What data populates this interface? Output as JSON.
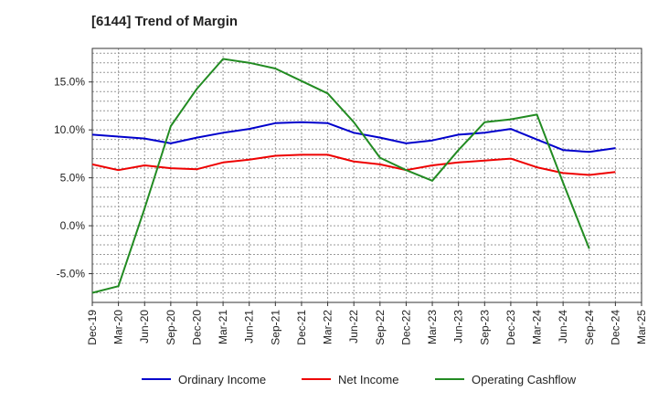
{
  "chart_data": {
    "type": "line",
    "title": "[6144]  Trend of Margin",
    "xlabel": "",
    "ylabel": "",
    "x": [
      "Dec-19",
      "Mar-20",
      "Jun-20",
      "Sep-20",
      "Dec-20",
      "Mar-21",
      "Jun-21",
      "Sep-21",
      "Dec-21",
      "Mar-22",
      "Jun-22",
      "Sep-22",
      "Dec-22",
      "Mar-23",
      "Jun-23",
      "Sep-23",
      "Dec-23",
      "Mar-24",
      "Jun-24",
      "Sep-24",
      "Dec-24",
      "Mar-25"
    ],
    "ylim": [
      -8.0,
      18.5
    ],
    "yticks": [
      -5.0,
      0.0,
      5.0,
      10.0,
      15.0
    ],
    "ytick_labels": [
      "-5.0%",
      "0.0%",
      "5.0%",
      "10.0%",
      "15.0%"
    ],
    "grid": true,
    "legend_position": "bottom",
    "series": [
      {
        "name": "Ordinary Income",
        "color": "#0000cc",
        "values": [
          9.5,
          9.3,
          9.1,
          8.6,
          9.2,
          9.7,
          10.1,
          10.7,
          10.8,
          10.7,
          9.7,
          9.2,
          8.6,
          8.9,
          9.5,
          9.7,
          10.1,
          9.0,
          7.9,
          7.7,
          8.1,
          null
        ]
      },
      {
        "name": "Net Income",
        "color": "#ee0000",
        "values": [
          6.4,
          5.8,
          6.3,
          6.0,
          5.9,
          6.6,
          6.9,
          7.3,
          7.4,
          7.4,
          6.7,
          6.4,
          5.8,
          6.3,
          6.6,
          6.8,
          7.0,
          6.1,
          5.5,
          5.3,
          5.6,
          null
        ]
      },
      {
        "name": "Operating Cashflow",
        "color": "#228b22",
        "values": [
          -7.0,
          -6.3,
          1.8,
          10.4,
          14.3,
          17.4,
          17.0,
          16.4,
          15.1,
          13.8,
          10.8,
          7.1,
          5.8,
          4.7,
          7.9,
          10.8,
          11.1,
          11.6,
          4.5,
          -2.4,
          null,
          null
        ]
      }
    ]
  }
}
